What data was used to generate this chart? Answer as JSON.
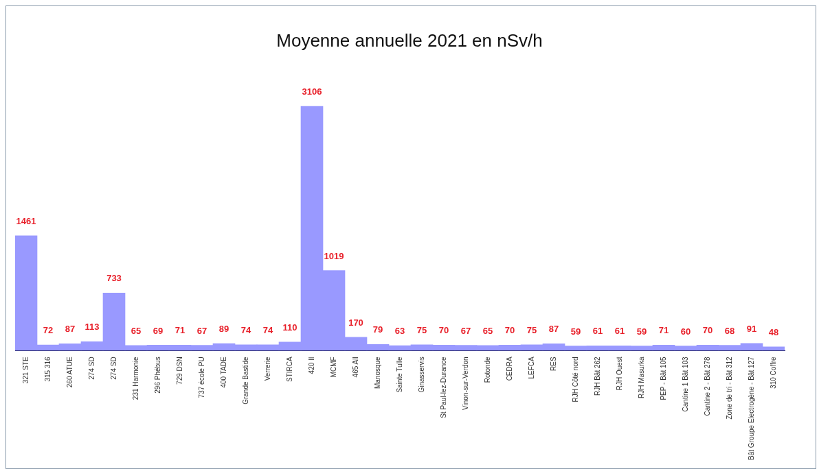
{
  "chart_data": {
    "type": "bar",
    "title": "Moyenne annuelle 2021 en nSv/h",
    "categories": [
      "321 STE",
      "315 316",
      "260 ATUE",
      "274 SD",
      "274 SD",
      "231 Harmonie",
      "296 Phébus",
      "729 DSN",
      "737 école PU",
      "400 TADE",
      "Grande Bastide",
      "Verrerie",
      "STIRCA",
      "420 II",
      "MCMF",
      "465 All",
      "Manosque",
      "Sainte Tulle",
      "Ginasservis",
      "St Paul-lez-Durance",
      "Vinon-sur-Verdon",
      "Rotonde",
      "CEDRA",
      "LEFCA",
      "RES",
      "RJH Côté nord",
      "RJH Bât 262",
      "RJH Ouest",
      "RJH Masurka",
      "PEP - Bât 105",
      "Cantine 1 Bât 103",
      "Cantine 2 - Bât 278",
      "Zone de tri - Bât 312",
      "Bât Groupe Electrogène - Bât 127",
      "310 Coffre"
    ],
    "values": [
      1461,
      72,
      87,
      113,
      733,
      65,
      69,
      71,
      67,
      89,
      74,
      74,
      110,
      3106,
      1019,
      170,
      79,
      63,
      75,
      70,
      67,
      65,
      70,
      75,
      87,
      59,
      61,
      61,
      59,
      71,
      60,
      70,
      68,
      91,
      48
    ],
    "color": "#9999ff",
    "data_labels": true,
    "grid": false,
    "legend": false,
    "tick_labels": "x"
  }
}
